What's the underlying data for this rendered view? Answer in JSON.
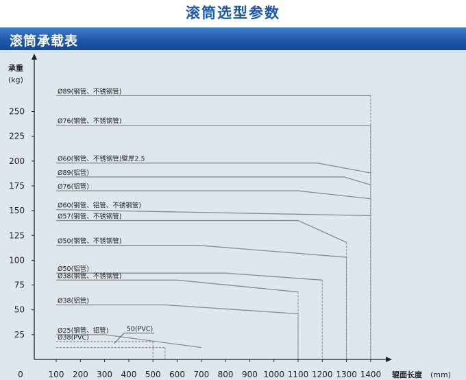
{
  "header": {
    "title": "滚筒选型参数"
  },
  "section": {
    "title": "滚筒承载表"
  },
  "colors": {
    "title_blue": "#1a5aa8",
    "bar_blue": "#1f58aa",
    "panel_bg": "#dde7ed",
    "series_line": "#8a8a8a"
  },
  "chart_data": {
    "type": "line",
    "title": "",
    "ylabel": "承重",
    "yunit": "(kg)",
    "xlabel": "辊面长度",
    "xunit": "(mm)",
    "origin_label": "0",
    "xlim": [
      100,
      1400
    ],
    "ylim": [
      0,
      275
    ],
    "x_ticks": [
      100,
      200,
      300,
      400,
      500,
      600,
      700,
      800,
      900,
      1000,
      1100,
      1200,
      1300,
      1400
    ],
    "y_ticks": [
      25,
      50,
      75,
      100,
      125,
      150,
      175,
      200,
      225,
      250
    ],
    "grid": false,
    "series": [
      {
        "name": "Ø89(钢管、不锈钢管)",
        "style": "solid",
        "drop": true,
        "points": [
          [
            100,
            266
          ],
          [
            1400,
            266
          ]
        ]
      },
      {
        "name": "Ø76(钢管、不锈钢管)",
        "style": "solid",
        "drop": true,
        "points": [
          [
            100,
            236
          ],
          [
            1400,
            236
          ]
        ]
      },
      {
        "name": "Ø60(钢管、不锈钢管)壁厚2.5",
        "style": "solid",
        "drop": false,
        "points": [
          [
            100,
            198
          ],
          [
            1180,
            198
          ],
          [
            1400,
            188
          ]
        ]
      },
      {
        "name": "Ø89(铝管)",
        "style": "solid",
        "drop": false,
        "points": [
          [
            100,
            184
          ],
          [
            1290,
            184
          ],
          [
            1400,
            176
          ]
        ]
      },
      {
        "name": "Ø76(铝管)",
        "style": "solid",
        "drop": false,
        "points": [
          [
            100,
            170
          ],
          [
            1100,
            170
          ],
          [
            1400,
            162
          ]
        ]
      },
      {
        "name": "Ø60(钢管、铝管、不锈钢管)",
        "style": "solid",
        "drop": false,
        "points": [
          [
            100,
            151
          ],
          [
            1400,
            145
          ]
        ]
      },
      {
        "name": "Ø57(钢管、不锈钢管)",
        "style": "solid",
        "drop": true,
        "points": [
          [
            100,
            140
          ],
          [
            1100,
            140
          ],
          [
            1300,
            118
          ]
        ]
      },
      {
        "name": "Ø50(钢管、不锈钢管)",
        "style": "solid",
        "drop": true,
        "points": [
          [
            100,
            115
          ],
          [
            690,
            115
          ],
          [
            1300,
            103
          ]
        ]
      },
      {
        "name": "Ø50(铝管)",
        "style": "solid",
        "drop": true,
        "points": [
          [
            100,
            87
          ],
          [
            800,
            87
          ],
          [
            1200,
            80
          ]
        ]
      },
      {
        "name": "Ø38(钢管、不锈钢管)",
        "style": "solid",
        "drop": true,
        "points": [
          [
            100,
            80
          ],
          [
            600,
            80
          ],
          [
            1100,
            68
          ]
        ]
      },
      {
        "name": "Ø38(铝管)",
        "style": "solid",
        "drop": true,
        "points": [
          [
            100,
            55
          ],
          [
            550,
            55
          ],
          [
            1100,
            46
          ]
        ]
      },
      {
        "name": "Ø25(钢管、铝管)",
        "style": "solid",
        "drop": false,
        "points": [
          [
            100,
            25
          ],
          [
            300,
            25
          ],
          [
            700,
            12
          ]
        ]
      },
      {
        "name": "Ø38(PVC)",
        "style": "dashed",
        "drop": true,
        "points": [
          [
            100,
            18
          ],
          [
            500,
            18
          ]
        ]
      },
      {
        "name": "50(PVC)",
        "style": "dashed",
        "drop": true,
        "points": [
          [
            100,
            12
          ],
          [
            550,
            12
          ]
        ]
      }
    ]
  }
}
